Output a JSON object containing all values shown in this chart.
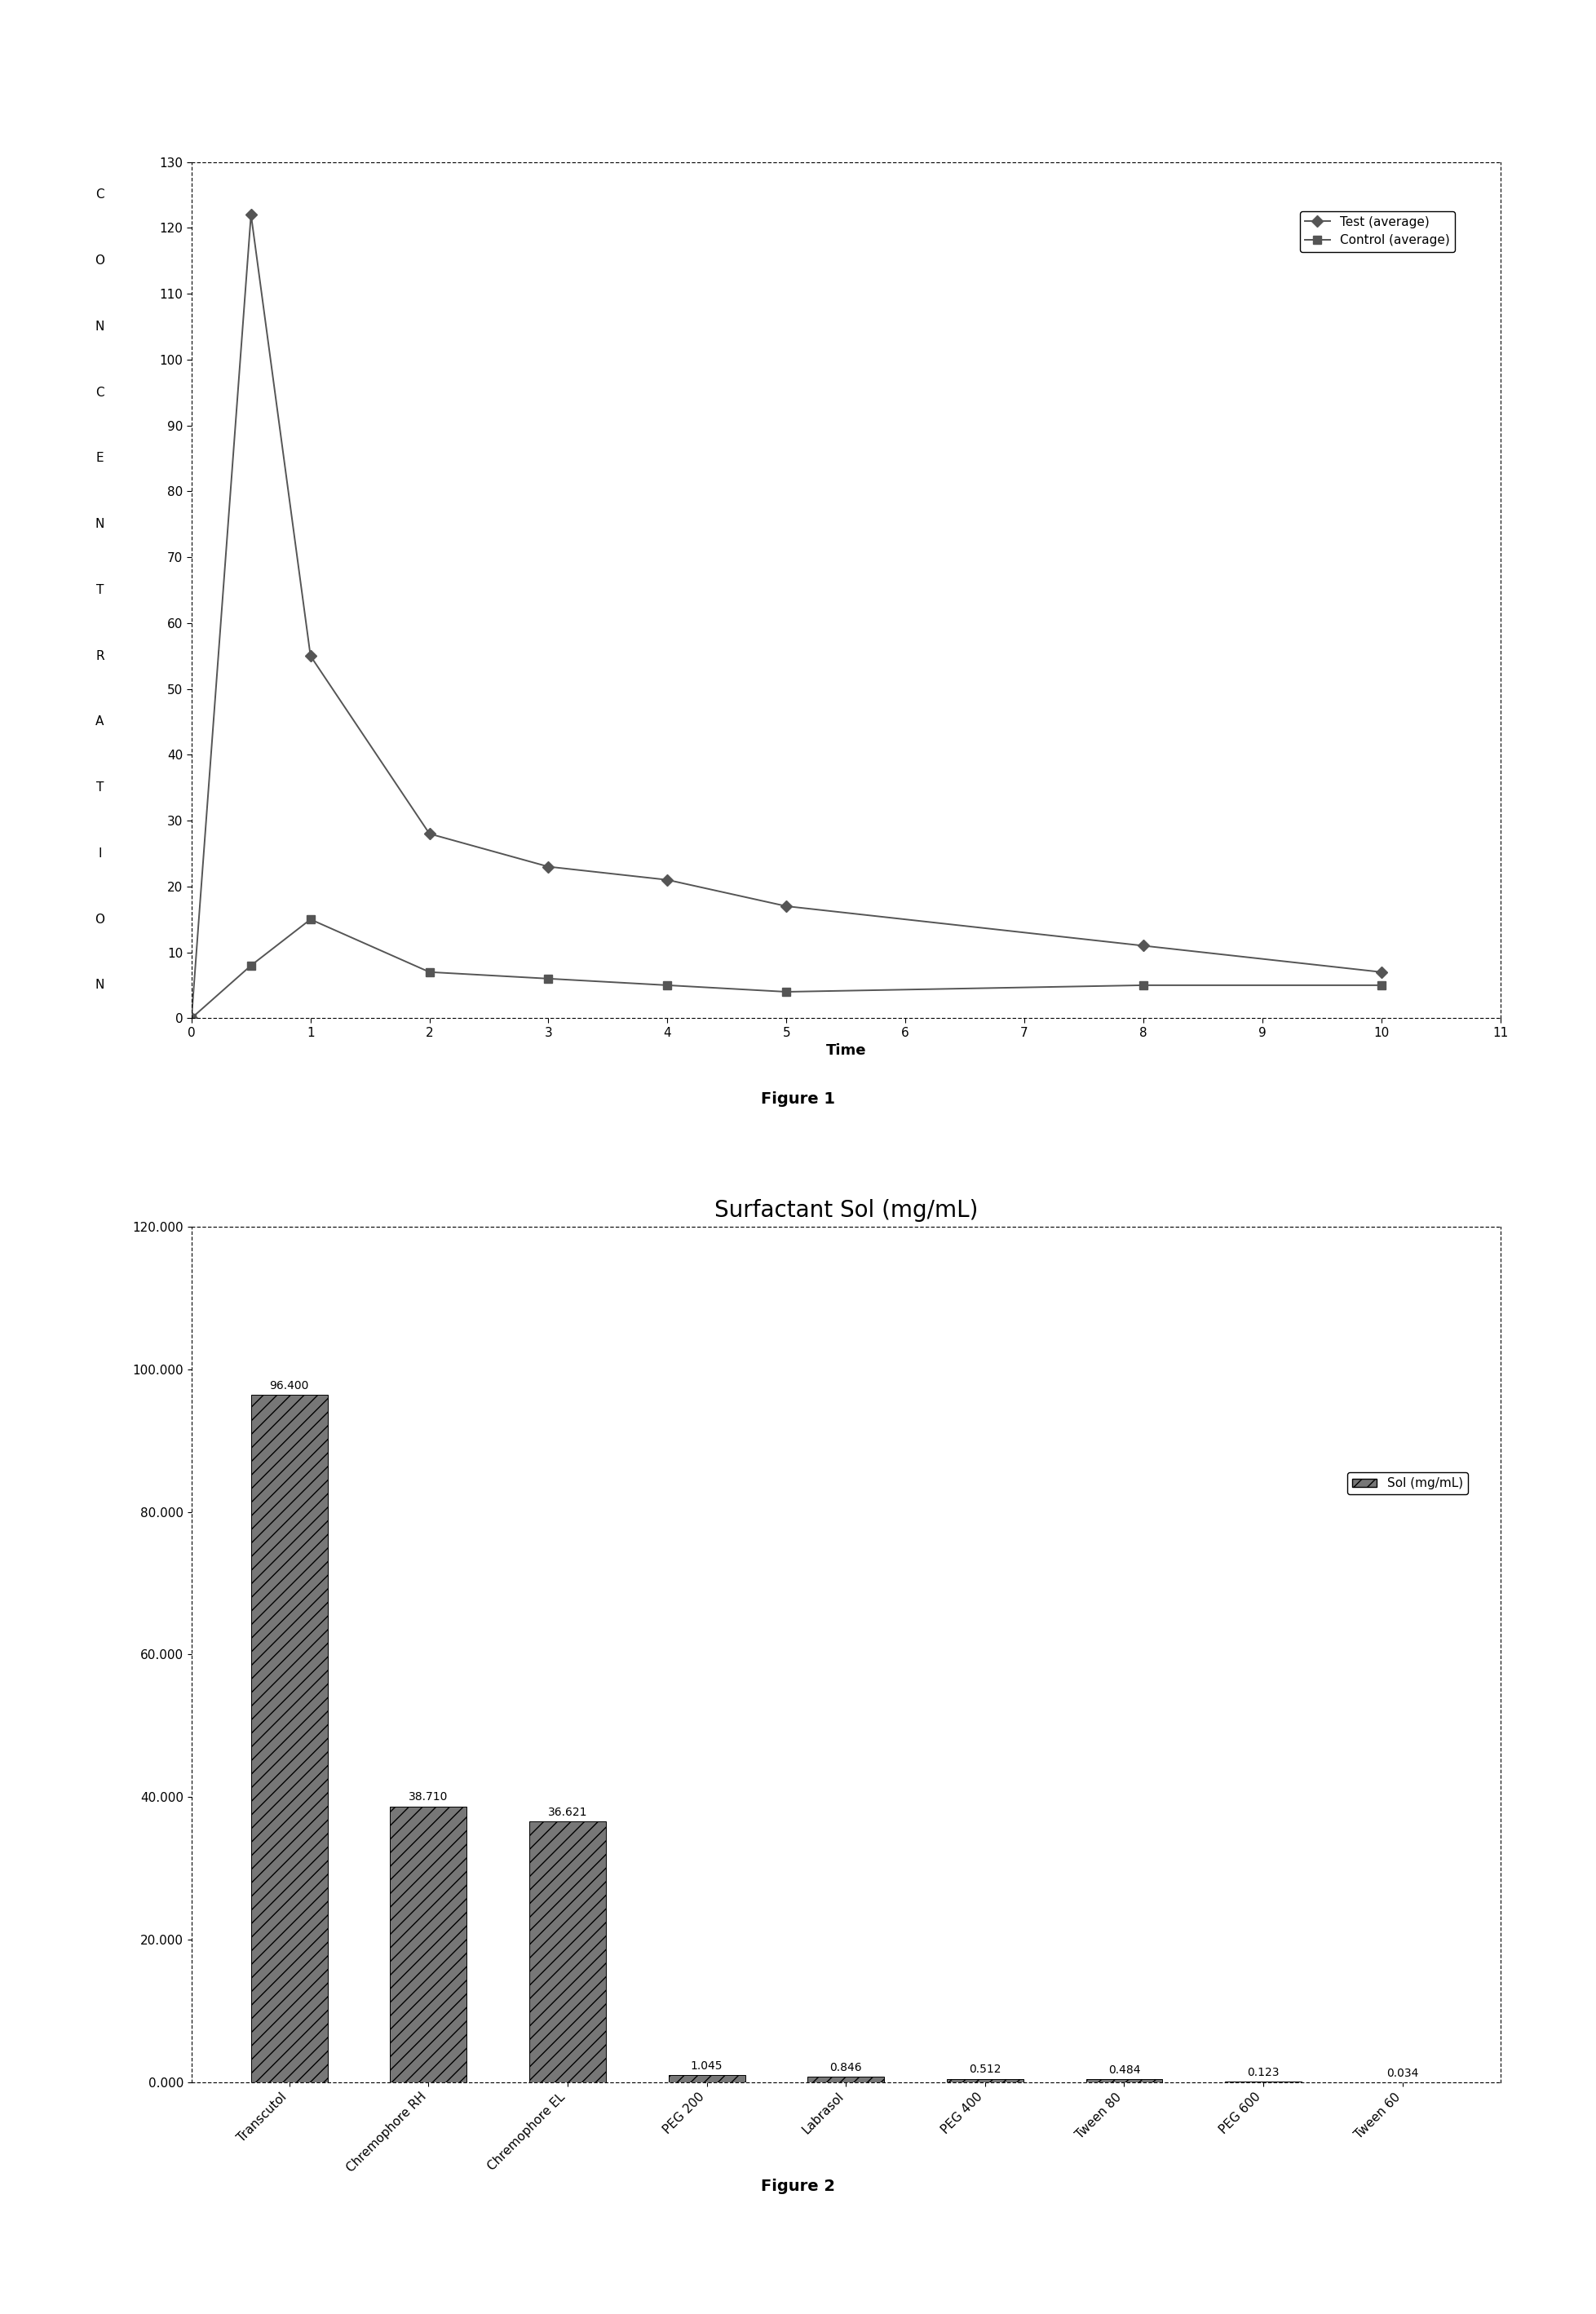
{
  "fig1": {
    "test_x": [
      0,
      0.5,
      1,
      2,
      3,
      4,
      5,
      8,
      10
    ],
    "test_y": [
      0,
      122,
      55,
      28,
      23,
      21,
      17,
      11,
      7
    ],
    "control_x": [
      0,
      0.5,
      1,
      2,
      3,
      4,
      5,
      8,
      10
    ],
    "control_y": [
      0,
      8,
      15,
      7,
      6,
      5,
      4,
      5,
      5
    ],
    "ylabel_chars": [
      "C",
      "O",
      "N",
      "C",
      "E",
      "N",
      "T",
      "R",
      "A",
      "T",
      "I",
      "O",
      "N"
    ],
    "xlabel": "Time",
    "xlim": [
      0,
      11
    ],
    "ylim": [
      0,
      130
    ],
    "yticks": [
      0,
      10,
      20,
      30,
      40,
      50,
      60,
      70,
      80,
      90,
      100,
      110,
      120,
      130
    ],
    "xticks": [
      0,
      1,
      2,
      3,
      4,
      5,
      6,
      7,
      8,
      9,
      10,
      11
    ],
    "legend_test": "Test (average)",
    "legend_control": "Control (average)",
    "line_color": "#555555",
    "marker_test": "D",
    "marker_control": "s",
    "figure_label": "Figure 1"
  },
  "fig2": {
    "categories": [
      "Transcutol",
      "Chremophore RH",
      "Chremophore EL",
      "PEG 200",
      "Labrasol",
      "PEG 400",
      "Tween 80",
      "PEG 600",
      "Tween 60"
    ],
    "values": [
      96.4,
      38.71,
      36.621,
      1.045,
      0.846,
      0.512,
      0.484,
      0.123,
      0.034
    ],
    "bar_color": "#777777",
    "title": "Surfactant Sol (mg/mL)",
    "ylim": [
      0,
      120
    ],
    "yticks": [
      0,
      20,
      40,
      60,
      80,
      100,
      120
    ],
    "ytick_labels": [
      "0.000",
      "20.000",
      "40.000",
      "60.000",
      "80.000",
      "100.000",
      "120.000"
    ],
    "legend_label": "Sol (mg/mL)",
    "figure_label": "Figure 2"
  }
}
